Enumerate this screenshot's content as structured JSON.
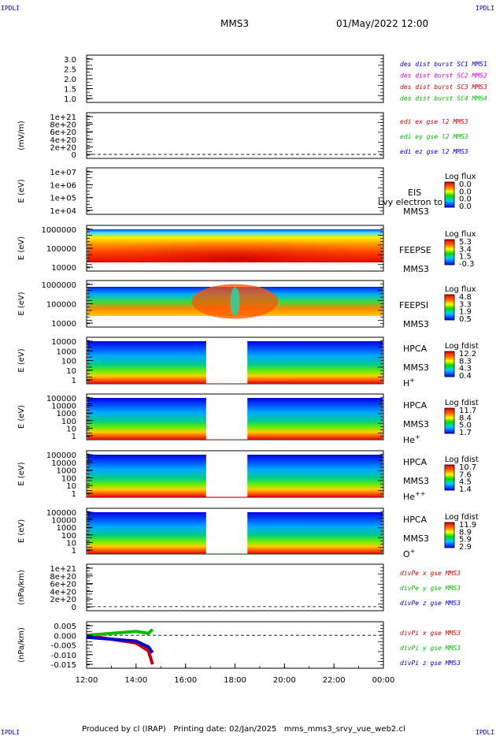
{
  "header": {
    "corner_label": "IPDLI",
    "spacecraft": "MMS3",
    "datetime": "01/May/2022 12:00"
  },
  "footer": {
    "text": "Produced by cl (IRAP)   Printing date: 02/Jan/2025   mms_mms3_srvy_vue_web2.cl"
  },
  "chart_data": [
    {
      "type": "line",
      "panel": 1,
      "ylabel": "",
      "yticks": [
        "3.0",
        "2.5",
        "2.0",
        "1.5",
        "1.0"
      ],
      "ylim": [
        0.8,
        3.2
      ],
      "legend": [
        {
          "name": "des dist burst SC1 MMS1",
          "color": "#0000cc"
        },
        {
          "name": "des dist burst SC2 MMS2",
          "color": "#cc00cc"
        },
        {
          "name": "des dist burst SC3 MMS3",
          "color": "#cc0000"
        },
        {
          "name": "des dist burst SC4 MMS4",
          "color": "#00bb00"
        }
      ]
    },
    {
      "type": "line",
      "panel": 2,
      "ylabel": "(mV/m)",
      "yticks": [
        "1e+21",
        "8e+20",
        "6e+20",
        "4e+20",
        "2e+20",
        "0"
      ],
      "ylim": [
        -1e+20,
        1.05e+21
      ],
      "zero_line": true,
      "legend": [
        {
          "name": "edi ex gse l2 MMS3",
          "color": "#cc0000"
        },
        {
          "name": "edi ey gse l2 MMS3",
          "color": "#00bb00"
        },
        {
          "name": "edi ez gse l2 MMS3",
          "color": "#0000cc"
        }
      ]
    },
    {
      "type": "heatmap",
      "panel": 3,
      "ylabel": "E (eV)",
      "yticks": [
        "1e+07",
        "1e+06",
        "1e+05",
        "1e+04"
      ],
      "yscale": "log",
      "ylim": [
        10000.0,
        10000000.0
      ],
      "instrument": "EIS",
      "overlap_text": "Lvy electron to",
      "spacecraft": "MMS3",
      "colorbar_title": "Log flux",
      "colorbar_ticks": [
        "0.0",
        "0.0",
        "0.0",
        "0.0"
      ]
    },
    {
      "type": "heatmap",
      "panel": 4,
      "ylabel": "E (eV)",
      "yticks": [
        "1000000",
        "100000",
        "10000"
      ],
      "yscale": "log",
      "ylim": [
        10000.0,
        1000000.0
      ],
      "instrument": "FEEPSE",
      "spacecraft": "MMS3",
      "colorbar_title": "Log flux",
      "colorbar_ticks": [
        "5.3",
        "3.4",
        "1.5",
        "-0.3"
      ]
    },
    {
      "type": "heatmap",
      "panel": 5,
      "ylabel": "E (eV)",
      "yticks": [
        "1000000",
        "100000",
        "10000"
      ],
      "yscale": "log",
      "ylim": [
        10000.0,
        1000000.0
      ],
      "instrument": "FEEPSI",
      "spacecraft": "MMS3",
      "colorbar_title": "Log flux",
      "colorbar_ticks": [
        "4.8",
        "3.3",
        "1.9",
        "0.5"
      ]
    },
    {
      "type": "heatmap",
      "panel": 6,
      "ylabel": "E (eV)",
      "yticks": [
        "10000",
        "1000",
        "100",
        "10",
        "1"
      ],
      "yscale": "log",
      "ylim": [
        1,
        40000
      ],
      "instrument": "HPCA",
      "spacecraft": "MMS3",
      "species": "H+",
      "species_base": "H",
      "species_sup": "+",
      "data_gap": [
        "16:50",
        "18:30"
      ],
      "colorbar_title": "Log fdist",
      "colorbar_ticks": [
        "12.2",
        "8.3",
        "4.3",
        "0.4"
      ]
    },
    {
      "type": "heatmap",
      "panel": 7,
      "ylabel": "E (eV)",
      "yticks": [
        "100000",
        "10000",
        "1000",
        "100",
        "10",
        "1"
      ],
      "yscale": "log",
      "ylim": [
        1,
        100000
      ],
      "instrument": "HPCA",
      "spacecraft": "MMS3",
      "species": "He+",
      "species_base": "He",
      "species_sup": "+",
      "data_gap": [
        "16:50",
        "18:30"
      ],
      "colorbar_title": "Log fdist",
      "colorbar_ticks": [
        "11.7",
        "8.4",
        "5.0",
        "1.7"
      ]
    },
    {
      "type": "heatmap",
      "panel": 8,
      "ylabel": "E (eV)",
      "yticks": [
        "100000",
        "10000",
        "1000",
        "100",
        "10",
        "1"
      ],
      "yscale": "log",
      "ylim": [
        1,
        100000
      ],
      "instrument": "HPCA",
      "spacecraft": "MMS3",
      "species": "He++",
      "species_base": "He",
      "species_sup": "++",
      "data_gap": [
        "16:50",
        "18:30"
      ],
      "colorbar_title": "Log fdist",
      "colorbar_ticks": [
        "10.7",
        "7.6",
        "4.5",
        "1.4"
      ]
    },
    {
      "type": "heatmap",
      "panel": 9,
      "ylabel": "E (eV)",
      "yticks": [
        "100000",
        "10000",
        "1000",
        "100",
        "10",
        "1"
      ],
      "yscale": "log",
      "ylim": [
        1,
        100000
      ],
      "instrument": "HPCA",
      "spacecraft": "MMS3",
      "species": "O+",
      "species_base": "O",
      "species_sup": "+",
      "data_gap": [
        "16:50",
        "18:30"
      ],
      "colorbar_title": "Log fdist",
      "colorbar_ticks": [
        "11.9",
        "8.9",
        "5.9",
        "2.9"
      ]
    },
    {
      "type": "line",
      "panel": 10,
      "ylabel": "(nPa/km)",
      "yticks": [
        "1e+21",
        "8e+20",
        "6e+20",
        "4e+20",
        "2e+20",
        "0"
      ],
      "ylim": [
        -1e+20,
        1.05e+21
      ],
      "zero_line": true,
      "legend": [
        {
          "name": "divPe x gse MMS3",
          "color": "#cc0000"
        },
        {
          "name": "divPe y gse MMS3",
          "color": "#00bb00"
        },
        {
          "name": "divPe z gse MMS3",
          "color": "#0000cc"
        }
      ]
    },
    {
      "type": "line",
      "panel": 11,
      "ylabel": "(nPa/km)",
      "yticks": [
        "0.005",
        "0.000",
        "-0.005",
        "-0.010",
        "-0.015"
      ],
      "ylim": [
        -0.017,
        0.007
      ],
      "zero_line": true,
      "data_end": "14:42",
      "series": [
        {
          "name": "divPi x gse MMS3",
          "color": "#cc0000",
          "x": [
            "12:00",
            "13:00",
            "14:00",
            "14:30",
            "14:40"
          ],
          "values": [
            0.0,
            -0.002,
            -0.004,
            -0.008,
            -0.015
          ]
        },
        {
          "name": "divPi y gse MMS3",
          "color": "#00bb00",
          "x": [
            "12:00",
            "13:00",
            "14:00",
            "14:30",
            "14:40"
          ],
          "values": [
            0.0,
            0.001,
            0.002,
            0.001,
            0.003
          ]
        },
        {
          "name": "divPi z gse MMS3",
          "color": "#0000cc",
          "x": [
            "12:00",
            "13:00",
            "14:00",
            "14:30",
            "14:40"
          ],
          "values": [
            -0.001,
            -0.002,
            -0.003,
            -0.006,
            -0.009
          ]
        }
      ],
      "x_ticks": [
        "12:00",
        "14:00",
        "16:00",
        "18:00",
        "20:00",
        "22:00",
        "00:00"
      ]
    }
  ]
}
